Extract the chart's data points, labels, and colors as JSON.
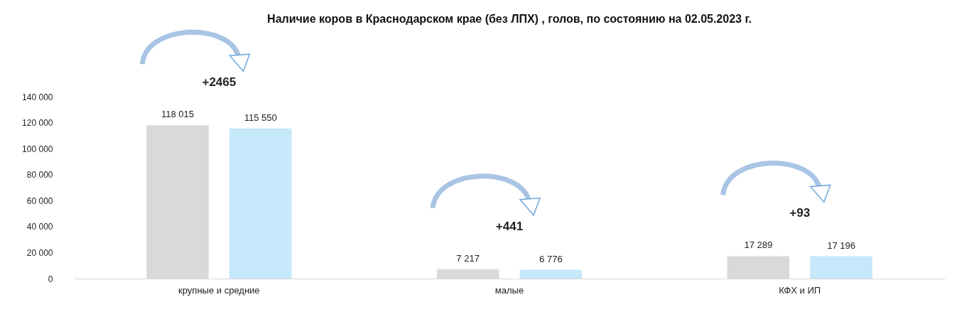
{
  "chart_data": {
    "type": "bar",
    "title": "Наличие коров в Краснодарском крае (без ЛПХ) , голов, по состоянию на 02.05.2023 г.",
    "categories": [
      "крупные и средние",
      "малые",
      "КФХ и ИП"
    ],
    "series": [
      {
        "color": "#d9d9d9",
        "values": [
          118015,
          7217,
          17289
        ],
        "value_labels": [
          "118 015",
          "7 217",
          "17 289"
        ]
      },
      {
        "color": "#c5e8fa",
        "values": [
          115550,
          6776,
          17196
        ],
        "value_labels": [
          "115 550",
          "6 776",
          "17 196"
        ]
      }
    ],
    "ylim": [
      0,
      140000
    ],
    "yticks": [
      {
        "value": 0,
        "label": "0"
      },
      {
        "value": 20000,
        "label": "20 000"
      },
      {
        "value": 40000,
        "label": "40 000"
      },
      {
        "value": 60000,
        "label": "60 000"
      },
      {
        "value": 80000,
        "label": "80 000"
      },
      {
        "value": 100000,
        "label": "100 000"
      },
      {
        "value": 120000,
        "label": "120 000"
      },
      {
        "value": 140000,
        "label": "140 000"
      }
    ],
    "annotations": [
      "+2465",
      "+441",
      "+93"
    ],
    "grid": false,
    "legend": false
  }
}
